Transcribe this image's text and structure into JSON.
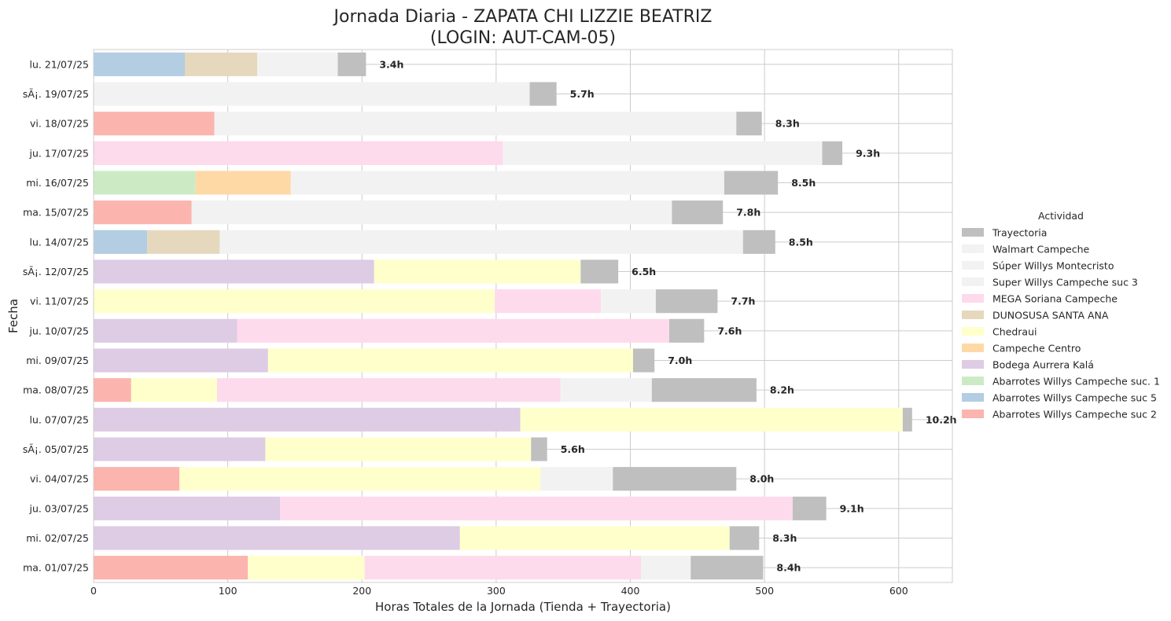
{
  "chart_data": {
    "type": "bar",
    "orientation": "horizontal",
    "stacked": true,
    "title": "Jornada Diaria - ZAPATA CHI LIZZIE BEATRIZ",
    "subtitle": "(LOGIN: AUT-CAM-05)",
    "xlabel": "Horas Totales de la Jornada (Tienda + Trayectoria)",
    "ylabel": "Fecha",
    "xlim": [
      0,
      640
    ],
    "xticks": [
      0,
      100,
      200,
      300,
      400,
      500,
      600
    ],
    "grid": true,
    "legend": {
      "title": "Actividad",
      "placement": "center-right"
    },
    "categories": [
      "ma. 01/07/25",
      "mi. 02/07/25",
      "ju. 03/07/25",
      "vi. 04/07/25",
      "sÃ¡. 05/07/25",
      "lu. 07/07/25",
      "ma. 08/07/25",
      "mi. 09/07/25",
      "ju. 10/07/25",
      "vi. 11/07/25",
      "sÃ¡. 12/07/25",
      "lu. 14/07/25",
      "ma. 15/07/25",
      "mi. 16/07/25",
      "ju. 17/07/25",
      "vi. 18/07/25",
      "sÃ¡. 19/07/25",
      "lu. 21/07/25"
    ],
    "series": [
      {
        "name": "Abarrotes Willys Campeche suc 2",
        "color": "#fbb4ae",
        "values": [
          115,
          0,
          0,
          64,
          0,
          0,
          28,
          0,
          0,
          0,
          0,
          0,
          73,
          0,
          0,
          90,
          0,
          0
        ]
      },
      {
        "name": "Abarrotes Willys Campeche suc 5",
        "color": "#b3cde3",
        "values": [
          0,
          0,
          0,
          0,
          0,
          0,
          0,
          0,
          0,
          0,
          0,
          40,
          0,
          0,
          0,
          0,
          0,
          68
        ]
      },
      {
        "name": "Abarrotes Willys Campeche suc. 1",
        "color": "#ccebc5",
        "values": [
          0,
          0,
          0,
          0,
          0,
          0,
          0,
          0,
          0,
          0,
          0,
          0,
          0,
          76,
          0,
          0,
          0,
          0
        ]
      },
      {
        "name": "Bodega Aurrera Kalá",
        "color": "#decbe4",
        "values": [
          0,
          273,
          139,
          0,
          128,
          318,
          0,
          130,
          107,
          0,
          209,
          0,
          0,
          0,
          0,
          0,
          0,
          0
        ]
      },
      {
        "name": "Campeche Centro",
        "color": "#fed9a6",
        "values": [
          0,
          0,
          0,
          0,
          0,
          0,
          0,
          0,
          0,
          0,
          0,
          0,
          0,
          71,
          0,
          0,
          0,
          0
        ]
      },
      {
        "name": "Chedraui",
        "color": "#ffffcc",
        "values": [
          87,
          201,
          0,
          269,
          198,
          285,
          64,
          272,
          0,
          299,
          154,
          0,
          0,
          0,
          0,
          0,
          0,
          0
        ]
      },
      {
        "name": "DUNOSUSA SANTA ANA",
        "color": "#e5d8bd",
        "values": [
          0,
          0,
          0,
          0,
          0,
          0,
          0,
          0,
          0,
          0,
          0,
          54,
          0,
          0,
          0,
          0,
          0,
          54
        ]
      },
      {
        "name": "MEGA Soriana Campeche",
        "color": "#fddaec",
        "values": [
          206,
          0,
          382,
          0,
          0,
          0,
          256,
          0,
          322,
          79,
          0,
          0,
          0,
          0,
          305,
          0,
          0,
          0
        ]
      },
      {
        "name": "Super Willys Campeche suc 3",
        "color": "#f2f2f2",
        "values": [
          37,
          0,
          0,
          54,
          0,
          0,
          68,
          0,
          0,
          41,
          0,
          390,
          0,
          0,
          0,
          0,
          0,
          0
        ]
      },
      {
        "name": "Súper Willys Montecristo",
        "color": "#f2f2f2",
        "values": [
          0,
          0,
          0,
          0,
          0,
          0,
          0,
          0,
          0,
          0,
          0,
          0,
          358,
          0,
          0,
          0,
          325,
          60
        ]
      },
      {
        "name": "Walmart Campeche",
        "color": "#f2f2f2",
        "values": [
          0,
          0,
          0,
          0,
          0,
          0,
          0,
          0,
          0,
          0,
          0,
          0,
          0,
          323,
          238,
          389,
          0,
          0
        ]
      },
      {
        "name": "Trayectoria",
        "color": "#bfbfbf",
        "values": [
          54,
          22,
          25,
          92,
          12,
          7,
          78,
          16,
          26,
          46,
          28,
          24,
          38,
          40,
          15,
          19,
          20,
          21
        ]
      }
    ],
    "totals": [
      "8.4h",
      "8.3h",
      "9.1h",
      "8.0h",
      "5.6h",
      "10.2h",
      "8.2h",
      "7.0h",
      "7.6h",
      "7.7h",
      "6.5h",
      "8.5h",
      "7.8h",
      "8.5h",
      "9.3h",
      "8.3h",
      "5.7h",
      "3.4h"
    ],
    "legend_order": [
      "Trayectoria",
      "Walmart Campeche",
      "Súper Willys Montecristo",
      "Super Willys Campeche suc 3",
      "MEGA Soriana Campeche",
      "DUNOSUSA SANTA ANA",
      "Chedraui",
      "Campeche Centro",
      "Bodega Aurrera Kalá",
      "Abarrotes Willys Campeche suc. 1",
      "Abarrotes Willys Campeche suc 5",
      "Abarrotes Willys Campeche suc 2"
    ]
  }
}
